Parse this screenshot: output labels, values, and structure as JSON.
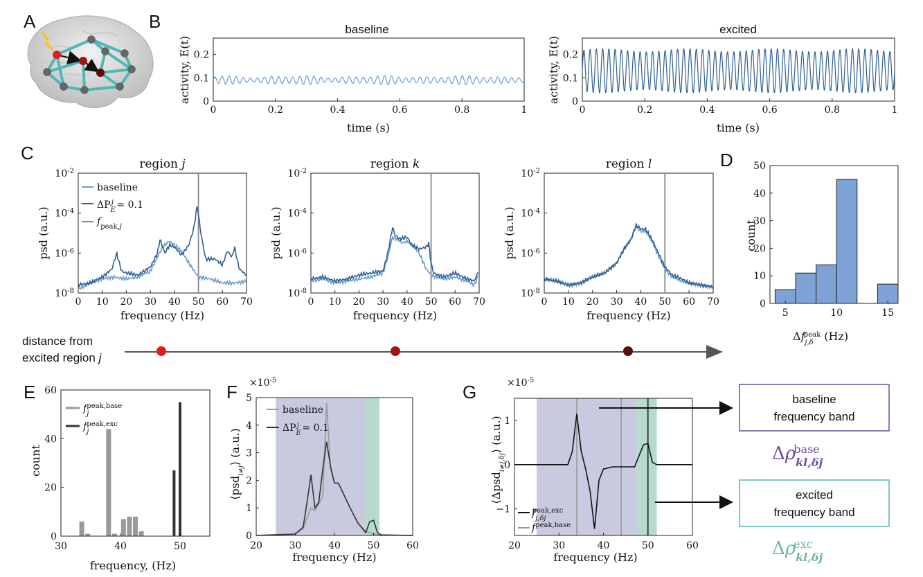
{
  "panel_labels": {
    "A": "A",
    "B": "B",
    "C": "C",
    "D": "D",
    "E": "E",
    "F": "F",
    "G": "G"
  },
  "colors": {
    "baseline": "#6b9bd1",
    "excited": "#2e5f93",
    "peak_line": "#888888",
    "red1": "#e41a1c",
    "red2": "#a31414",
    "red3": "#5a0e0e",
    "teal_edge": "#4fb7b3",
    "hist_bar": "#7fa2d6",
    "grey_bar": "#999999",
    "dark_bar": "#333333",
    "purple_band": "#b7b8d6",
    "green_band": "#a9d3c3",
    "purple_text": "#6a4ea0",
    "green_text": "#6bb89a"
  },
  "brain_icon": "brain-network-icon",
  "lightning_icon": "lightning-bolt-icon",
  "chart_data": [
    {
      "panel": "B-left",
      "type": "line",
      "title": "baseline",
      "xlabel": "time (s)",
      "ylabel": "activity, E(t)",
      "xlim": [
        0,
        1
      ],
      "ylim": [
        0,
        0.27
      ],
      "xticks": [
        "0",
        "0.2",
        "0.4",
        "0.6",
        "0.8",
        "1"
      ],
      "yticks": [
        "0",
        "0.1",
        "0.2"
      ],
      "series": [
        {
          "mean": 0.09,
          "amplitude": 0.02,
          "cycles": 44
        }
      ]
    },
    {
      "panel": "B-right",
      "type": "line",
      "title": "excited",
      "xlabel": "time (s)",
      "ylabel": "activity, E(t)",
      "xlim": [
        0,
        1
      ],
      "ylim": [
        0,
        0.27
      ],
      "xticks": [
        "0",
        "0.2",
        "0.4",
        "0.6",
        "0.8",
        "1"
      ],
      "yticks": [
        "0",
        "0.1",
        "0.2"
      ],
      "series": [
        {
          "mean": 0.13,
          "amplitude": 0.095,
          "cycles": 50
        }
      ]
    },
    {
      "panel": "C-j",
      "type": "line",
      "title_prefix": "region",
      "title_var": "j",
      "xlabel": "frequency (Hz)",
      "ylabel": "psd (a.u.)",
      "yscale": "log",
      "xlim": [
        0,
        70
      ],
      "ylim_exp": [
        -8,
        -2
      ],
      "xticks": [
        "0",
        "10",
        "20",
        "30",
        "40",
        "50",
        "60",
        "70"
      ],
      "ytick_exps": [
        "-2",
        "-4",
        "-6",
        "-8"
      ],
      "peak_line": 50,
      "legend": [
        "baseline",
        "ΔP",
        "f"
      ],
      "series": [
        {
          "name": "baseline",
          "x": [
            0,
            5,
            10,
            15,
            20,
            25,
            30,
            33,
            35,
            38,
            40,
            43,
            46,
            50,
            55,
            60,
            65,
            70
          ],
          "logy": [
            -7.8,
            -7.5,
            -7.3,
            -7.2,
            -7.3,
            -7.2,
            -6.9,
            -6.2,
            -5.7,
            -5.4,
            -5.6,
            -5.9,
            -6.5,
            -7.2,
            -7.3,
            -7.5,
            -7.5,
            -7.4
          ]
        },
        {
          "name": "excited",
          "x": [
            0,
            5,
            10,
            14,
            16,
            18,
            20,
            25,
            30,
            33,
            34,
            36,
            38,
            40,
            43,
            46,
            48,
            49.5,
            51,
            53,
            57,
            60,
            62,
            64,
            65,
            67,
            70
          ],
          "logy": [
            -7.6,
            -7.5,
            -7.2,
            -6.8,
            -6.0,
            -6.9,
            -7.0,
            -7.1,
            -6.7,
            -6.0,
            -5.3,
            -6.0,
            -5.6,
            -5.7,
            -6.1,
            -5.6,
            -4.8,
            -3.6,
            -5.0,
            -6.3,
            -6.3,
            -6.6,
            -5.9,
            -6.2,
            -5.7,
            -6.8,
            -7.1
          ]
        }
      ]
    },
    {
      "panel": "C-k",
      "type": "line",
      "title_prefix": "region",
      "title_var": "k",
      "xlabel": "frequency (Hz)",
      "ylabel": "psd (a.u.)",
      "yscale": "log",
      "xlim": [
        0,
        70
      ],
      "ylim_exp": [
        -8,
        -2
      ],
      "xticks": [
        "0",
        "10",
        "20",
        "30",
        "40",
        "50",
        "60",
        "70"
      ],
      "ytick_exps": [
        "-2",
        "-4",
        "-6",
        "-8"
      ],
      "peak_line": 50,
      "series": [
        {
          "name": "baseline",
          "x": [
            0,
            5,
            10,
            15,
            20,
            25,
            30,
            32,
            34,
            36,
            38,
            40,
            42,
            45,
            48,
            50,
            55,
            60,
            65,
            68,
            70
          ],
          "logy": [
            -7.4,
            -7.3,
            -7.5,
            -7.4,
            -7.3,
            -7.2,
            -7.0,
            -6.2,
            -5.2,
            -5.3,
            -5.5,
            -5.4,
            -5.6,
            -6.0,
            -6.8,
            -7.1,
            -7.3,
            -7.2,
            -7.4,
            -7.6,
            -7.0
          ]
        },
        {
          "name": "excited",
          "x": [
            0,
            5,
            10,
            15,
            20,
            25,
            30,
            32,
            34,
            35,
            37,
            40,
            42,
            45,
            48,
            49,
            50,
            51,
            55,
            60,
            65,
            68,
            70
          ],
          "logy": [
            -7.3,
            -7.2,
            -7.4,
            -7.3,
            -7.1,
            -7.0,
            -6.9,
            -6.0,
            -4.7,
            -5.1,
            -5.3,
            -5.2,
            -5.6,
            -5.8,
            -5.7,
            -5.5,
            -6.5,
            -7.0,
            -7.2,
            -7.0,
            -7.3,
            -7.4,
            -6.8
          ]
        }
      ]
    },
    {
      "panel": "C-l",
      "type": "line",
      "title_prefix": "region",
      "title_var": "l",
      "xlabel": "frequency (Hz)",
      "ylabel": "psd (a.u.)",
      "yscale": "log",
      "xlim": [
        0,
        70
      ],
      "ylim_exp": [
        -8,
        -2
      ],
      "xticks": [
        "0",
        "10",
        "20",
        "30",
        "40",
        "50",
        "60",
        "70"
      ],
      "ytick_exps": [
        "-2",
        "-4",
        "-6",
        "-8"
      ],
      "peak_line": 50,
      "series": [
        {
          "name": "baseline",
          "x": [
            0,
            5,
            10,
            15,
            20,
            25,
            30,
            33,
            36,
            38,
            40,
            42,
            45,
            48,
            50,
            53,
            57,
            60,
            65,
            70
          ],
          "logy": [
            -7.3,
            -7.4,
            -7.6,
            -7.5,
            -7.2,
            -7.0,
            -6.5,
            -5.8,
            -5.3,
            -4.7,
            -4.9,
            -4.9,
            -5.5,
            -6.3,
            -6.8,
            -7.2,
            -7.4,
            -7.5,
            -7.6,
            -7.7
          ]
        },
        {
          "name": "excited",
          "x": [
            0,
            5,
            10,
            15,
            20,
            25,
            30,
            33,
            36,
            38,
            40,
            42,
            45,
            48,
            50,
            53,
            57,
            60,
            65,
            70
          ],
          "logy": [
            -7.3,
            -7.4,
            -7.6,
            -7.5,
            -7.2,
            -7.0,
            -6.5,
            -5.8,
            -5.3,
            -4.6,
            -4.8,
            -4.8,
            -5.4,
            -6.2,
            -6.7,
            -7.1,
            -7.3,
            -7.5,
            -7.6,
            -7.7
          ]
        }
      ]
    },
    {
      "panel": "D",
      "type": "bar",
      "xlabel": "Δf (Hz)",
      "ylabel": "count",
      "xlim": [
        3.5,
        16
      ],
      "ylim": [
        0,
        50
      ],
      "xticks": [
        "5",
        "10",
        "15"
      ],
      "yticks": [
        "0",
        "10",
        "20",
        "30",
        "40",
        "50"
      ],
      "bin_edges": [
        4,
        6,
        8,
        10,
        12,
        14,
        16
      ],
      "values": [
        5,
        11,
        14,
        45,
        0,
        7
      ]
    },
    {
      "panel": "E",
      "type": "bar",
      "xlabel": "frequency, (Hz)",
      "ylabel": "count",
      "xlim": [
        30,
        55
      ],
      "ylim": [
        0,
        60
      ],
      "xticks": [
        "30",
        "40",
        "50"
      ],
      "yticks": [
        "0",
        "20",
        "40",
        "60"
      ],
      "series": [
        {
          "name": "f base",
          "x": [
            33.5,
            34.5,
            38,
            39,
            40.5,
            41.5,
            42.5,
            43.5
          ],
          "values": [
            6,
            1,
            44,
            1,
            7,
            8,
            8,
            2
          ]
        },
        {
          "name": "f exc",
          "x": [
            49,
            50
          ],
          "values": [
            27,
            55
          ]
        }
      ]
    },
    {
      "panel": "F",
      "type": "line",
      "xlabel": "frequency (Hz)",
      "ylabel": "⟨psd⟩ (a.u.)",
      "multiplier": "×10",
      "multiplier_exp": "-5",
      "xlim": [
        20,
        60
      ],
      "ylim": [
        0,
        5
      ],
      "xticks": [
        "20",
        "30",
        "40",
        "50",
        "60"
      ],
      "yticks": [
        "0",
        "1",
        "2",
        "3",
        "4",
        "5"
      ],
      "bands": [
        {
          "from": 25,
          "to": 48
        },
        {
          "from": 48,
          "to": 51.5
        }
      ],
      "series": [
        {
          "name": "baseline",
          "x": [
            20,
            30,
            32,
            34,
            35,
            37,
            38,
            39,
            40,
            41,
            42,
            44,
            46,
            48,
            50,
            52,
            55,
            60
          ],
          "y": [
            0,
            0.05,
            0.25,
            1.0,
            0.9,
            1.4,
            4.8,
            2.4,
            1.9,
            1.9,
            1.6,
            1.0,
            0.45,
            0.15,
            0.05,
            0.02,
            0.01,
            0
          ]
        },
        {
          "name": "excited",
          "x": [
            20,
            30,
            32,
            33,
            34,
            35,
            36,
            37,
            38,
            39,
            40,
            41,
            42,
            44,
            46,
            48,
            49,
            50,
            51,
            52,
            55,
            60
          ],
          "y": [
            0,
            0.05,
            0.3,
            1.2,
            2.2,
            1.0,
            1.2,
            2.4,
            3.4,
            2.5,
            1.9,
            1.9,
            1.6,
            1.0,
            0.45,
            0.1,
            0.5,
            0.55,
            0.1,
            0.02,
            0.01,
            0
          ]
        }
      ],
      "legend": [
        "baseline",
        "ΔP"
      ]
    },
    {
      "panel": "G",
      "type": "line",
      "xlabel": "frequency (Hz)",
      "ylabel": "⟨Δpsd⟩ (a.u.)",
      "multiplier": "×10",
      "multiplier_exp": "-5",
      "xlim": [
        20,
        60
      ],
      "ylim": [
        -1.6,
        1.5
      ],
      "xticks": [
        "20",
        "30",
        "40",
        "50",
        "60"
      ],
      "yticks": [
        "-1",
        "0",
        "1"
      ],
      "bands": [
        {
          "from": 25,
          "to": 47.5
        },
        {
          "from": 47.5,
          "to": 52
        }
      ],
      "vlines_base": [
        34,
        44
      ],
      "vlines_exc": [
        50
      ],
      "series": [
        {
          "name": "delta",
          "x": [
            20,
            32,
            33,
            34,
            35,
            36,
            37,
            38,
            39,
            40,
            42,
            44,
            46,
            47,
            48,
            49,
            50,
            51,
            52,
            60
          ],
          "y": [
            0,
            0,
            0.3,
            1.15,
            0.3,
            -0.1,
            -0.6,
            -1.45,
            -0.35,
            -0.1,
            -0.05,
            -0.05,
            -0.05,
            -0.05,
            0.2,
            0.45,
            0.48,
            0.05,
            0,
            0
          ]
        }
      ],
      "legend": [
        "f exc",
        "f base"
      ]
    }
  ],
  "axis_text": {
    "C_legend_baseline": "baseline",
    "F_legend_baseline": "baseline"
  },
  "distance": {
    "label_line1": "distance from",
    "label_line2": "excited region"
  },
  "boxes": {
    "baseline_line1": "baseline",
    "baseline_line2": "frequency band",
    "excited_line1": "excited",
    "excited_line2": "frequency band"
  }
}
